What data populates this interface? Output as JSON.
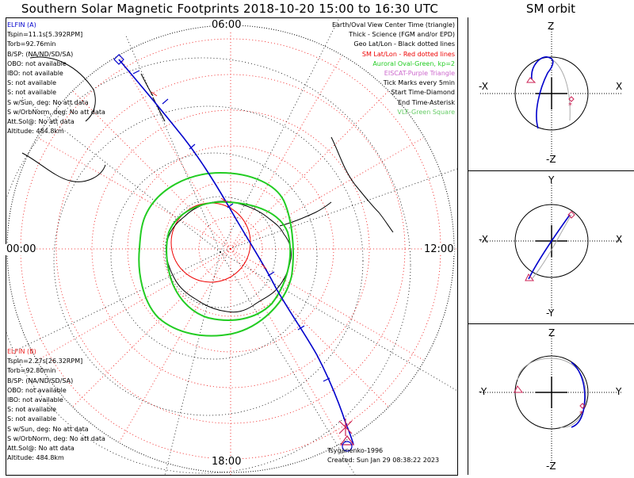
{
  "title": "Southern Solar Magnetic Footprints 2018-10-20 15:00 to 16:30 UTC",
  "orbit_title": "SM orbit",
  "time_labels": {
    "top": "06:00",
    "bottom": "18:00",
    "left": "00:00",
    "right": "12:00"
  },
  "elfin_a": {
    "name": "ELFIN (A)",
    "color": "#0000cc",
    "lines": [
      "Tspin=11.1s[5.392RPM]",
      "Torb=92.76min",
      "B/SP: (NA/ND/SD/SA)",
      "OBO: not available",
      "IBO: not available",
      "S: not available",
      "S: not available",
      "S w/Sun, deg: No att data",
      "S w/OrbNorm, deg: No att data",
      "Att.Sol@: No att data",
      "Altitude: 484.8km"
    ]
  },
  "elfin_b": {
    "name": "ELFIN (B)",
    "color": "#ee2222",
    "lines": [
      "Tspin=2.27s[26.32RPM]",
      "Torb=92.80min",
      "B/SP: (NA/ND/SD/SA)",
      "OBO: not available",
      "IBO: not available",
      "S: not available",
      "S: not available",
      "S w/Sun, deg: No att data",
      "S w/OrbNorm, deg: No att data",
      "Att.Sol@: No att data",
      "Altitude: 484.8km"
    ]
  },
  "legend": [
    {
      "text": "Earth/Oval View Center Time (triangle)",
      "color": "#000000"
    },
    {
      "text": "Thick - Science (FGM and/or EPD)",
      "color": "#000000"
    },
    {
      "text": "Geo Lat/Lon - Black dotted lines",
      "color": "#000000"
    },
    {
      "text": "SM Lat/Lon - Red dotted lines",
      "color": "#ee0000"
    },
    {
      "text": "Auroral Oval-Green, kp=2",
      "color": "#22cc22"
    },
    {
      "text": "EISCAT-Purple Triangle",
      "color": "#cc66cc"
    },
    {
      "text": "Tick Marks every 5min",
      "color": "#000000"
    },
    {
      "text": "Start Time-Diamond",
      "color": "#000000"
    },
    {
      "text": "End Time-Asterisk",
      "color": "#000000"
    },
    {
      "text": "VLF-Green Square",
      "color": "#66cc66"
    }
  ],
  "credit": {
    "line1": "Tsyganenko-1996",
    "line2": "Created: Sun Jan 29 08:38:22 2023"
  },
  "orbit_panels": [
    {
      "top": "Z",
      "bottom": "-Z",
      "left": "-X",
      "right": "X"
    },
    {
      "top": "Y",
      "bottom": "-Y",
      "left": "-X",
      "right": "X"
    },
    {
      "top": "Z",
      "bottom": "-Z",
      "left": "-Y",
      "right": "Y"
    }
  ],
  "colors": {
    "orbit_a": "#0000cc",
    "orbit_b": "#aaaaaa",
    "oval": "#22cc22",
    "sm_grid": "#ee0000",
    "geo_grid": "#000000",
    "marker": "#cc2255"
  }
}
